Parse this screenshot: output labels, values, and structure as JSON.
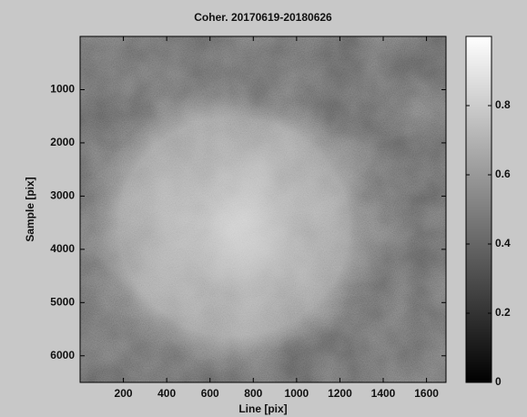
{
  "chart_data": {
    "type": "image",
    "title": "Coher. 20170619-20180626",
    "xlabel": "Line [pix]",
    "ylabel": "Sample [pix]",
    "xlim": [
      0,
      1690
    ],
    "xticks": [
      200,
      400,
      600,
      800,
      1000,
      1200,
      1400,
      1600
    ],
    "ylim": [
      6500,
      0
    ],
    "yticks": [
      1000,
      2000,
      3000,
      4000,
      5000,
      6000
    ],
    "colorbar": {
      "clim": [
        0,
        1
      ],
      "ticks": [
        0,
        0.2,
        0.4,
        0.6,
        0.8
      ],
      "colormap": "gray"
    }
  }
}
